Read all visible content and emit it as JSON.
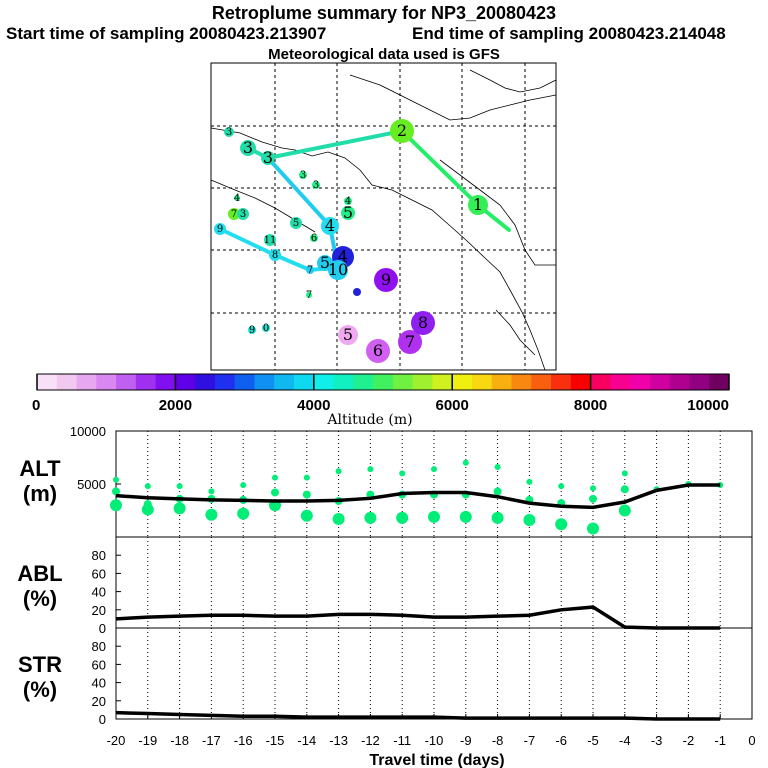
{
  "header": {
    "title": "Retroplume summary for NP3_20080423",
    "start_sampling": "Start time of sampling 20080423.213907",
    "end_sampling": "End time of sampling 20080423.214048",
    "met_data": "Meteorological data used is GFS"
  },
  "colorbar": {
    "label": "Altitude (m)",
    "ticks": [
      "0",
      "2000",
      "4000",
      "6000",
      "8000",
      "10000"
    ],
    "min": 0,
    "max": 10000
  },
  "map": {
    "description_labels": [
      "1",
      "2",
      "3",
      "4",
      "5",
      "6",
      "7",
      "8",
      "9",
      "10"
    ]
  },
  "chart_data": [
    {
      "type": "line",
      "panel": "ALT",
      "ylabel": "ALT\n(m)",
      "ylabel_line1": "ALT",
      "ylabel_line2": "(m)",
      "ylim": [
        0,
        10000
      ],
      "yticks": [
        "5000",
        "10000"
      ],
      "x": [
        -20,
        -19,
        -18,
        -17,
        -16,
        -15,
        -14,
        -13,
        -12,
        -11,
        -10,
        -9,
        -8,
        -7,
        -6,
        -5,
        -4,
        -3,
        -2,
        -1
      ],
      "series": [
        {
          "name": "mean altitude",
          "values": [
            3900,
            3700,
            3600,
            3500,
            3450,
            3400,
            3400,
            3450,
            3650,
            4100,
            4200,
            4200,
            3800,
            3200,
            2900,
            2800,
            3300,
            4400,
            4900,
            4900
          ]
        }
      ],
      "clusters": [
        [
          5400,
          4300,
          3000
        ],
        [
          4800,
          3100,
          2600
        ],
        [
          4800,
          3600,
          2700
        ],
        [
          4300,
          3600,
          2100
        ],
        [
          4900,
          3500,
          2200
        ],
        [
          5600,
          4200,
          3000
        ],
        [
          5600,
          4000,
          2000
        ],
        [
          6200,
          3400,
          1700
        ],
        [
          6400,
          4000,
          1800
        ],
        [
          6000,
          4000,
          1800
        ],
        [
          6400,
          4000,
          1900
        ],
        [
          7000,
          4000,
          1900
        ],
        [
          6600,
          4300,
          1800
        ],
        [
          5200,
          3500,
          1600
        ],
        [
          4800,
          3200,
          1200
        ],
        [
          4600,
          3600,
          800
        ],
        [
          6000,
          4500,
          2500
        ],
        [
          4500
        ],
        [
          5000
        ],
        [
          4900
        ]
      ],
      "color": "#00ee77"
    },
    {
      "type": "line",
      "panel": "ABL",
      "ylabel_line1": "ABL",
      "ylabel_line2": "(%)",
      "ylim": [
        0,
        100
      ],
      "yticks": [
        "0",
        "20",
        "40",
        "60",
        "80"
      ],
      "x": [
        -20,
        -19,
        -18,
        -17,
        -16,
        -15,
        -14,
        -13,
        -12,
        -11,
        -10,
        -9,
        -8,
        -7,
        -6,
        -5,
        -4,
        -3,
        -2,
        -1
      ],
      "series": [
        {
          "name": "ABL fraction",
          "values": [
            10,
            12,
            13,
            14,
            14,
            13,
            13,
            15,
            15,
            14,
            12,
            12,
            13,
            14,
            20,
            23,
            1,
            0,
            0,
            0
          ]
        }
      ]
    },
    {
      "type": "line",
      "panel": "STR",
      "ylabel_line1": "STR",
      "ylabel_line2": "(%)",
      "ylim": [
        0,
        100
      ],
      "yticks": [
        "0",
        "20",
        "40",
        "60",
        "80"
      ],
      "xlabel": "Travel time (days)",
      "xticks": [
        "-20",
        "-19",
        "-18",
        "-17",
        "-16",
        "-15",
        "-14",
        "-13",
        "-12",
        "-11",
        "-10",
        "-9",
        "-8",
        "-7",
        "-6",
        "-5",
        "-4",
        "-3",
        "-2",
        "-1",
        "0"
      ],
      "x": [
        -20,
        -19,
        -18,
        -17,
        -16,
        -15,
        -14,
        -13,
        -12,
        -11,
        -10,
        -9,
        -8,
        -7,
        -6,
        -5,
        -4,
        -3,
        -2,
        -1
      ],
      "series": [
        {
          "name": "STR fraction",
          "values": [
            7,
            6,
            5,
            4,
            3,
            3,
            2,
            2,
            2,
            2,
            2,
            1,
            1,
            1,
            1,
            1,
            1,
            0,
            0,
            0
          ]
        }
      ]
    }
  ]
}
